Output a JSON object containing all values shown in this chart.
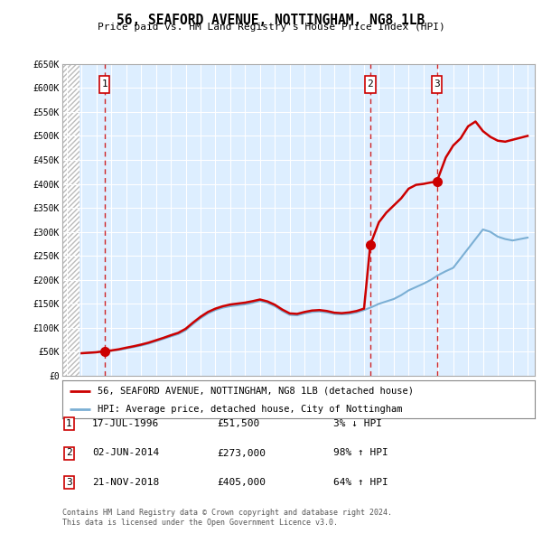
{
  "title": "56, SEAFORD AVENUE, NOTTINGHAM, NG8 1LB",
  "subtitle": "Price paid vs. HM Land Registry's House Price Index (HPI)",
  "ylabel_ticks": [
    "£0",
    "£50K",
    "£100K",
    "£150K",
    "£200K",
    "£250K",
    "£300K",
    "£350K",
    "£400K",
    "£450K",
    "£500K",
    "£550K",
    "£600K",
    "£650K"
  ],
  "ylim": [
    0,
    650000
  ],
  "ytick_vals": [
    0,
    50000,
    100000,
    150000,
    200000,
    250000,
    300000,
    350000,
    400000,
    450000,
    500000,
    550000,
    600000,
    650000
  ],
  "xlim_start": 1993.7,
  "xlim_end": 2025.5,
  "xtick_start": 1994,
  "xtick_end": 2025,
  "sale_dates": [
    1996.54,
    2014.42,
    2018.9
  ],
  "sale_prices": [
    51500,
    273000,
    405000
  ],
  "sale_labels": [
    "1",
    "2",
    "3"
  ],
  "sale_info": [
    {
      "label": "1",
      "date": "17-JUL-1996",
      "price": "£51,500",
      "hpi": "3% ↓ HPI"
    },
    {
      "label": "2",
      "date": "02-JUN-2014",
      "price": "£273,000",
      "hpi": "98% ↑ HPI"
    },
    {
      "label": "3",
      "date": "21-NOV-2018",
      "price": "£405,000",
      "hpi": "64% ↑ HPI"
    }
  ],
  "legend_property": "56, SEAFORD AVENUE, NOTTINGHAM, NG8 1LB (detached house)",
  "legend_hpi": "HPI: Average price, detached house, City of Nottingham",
  "footer1": "Contains HM Land Registry data © Crown copyright and database right 2024.",
  "footer2": "This data is licensed under the Open Government Licence v3.0.",
  "property_line_color": "#cc0000",
  "hpi_line_color": "#7bafd4",
  "dot_color": "#cc0000",
  "bg_plot_color": "#ddeeff",
  "grid_color": "#ffffff",
  "vline_color": "#cc0000",
  "box_color": "#cc0000",
  "hpi_years": [
    1995.0,
    1995.5,
    1996.0,
    1996.5,
    1997.0,
    1997.5,
    1998.0,
    1998.5,
    1999.0,
    1999.5,
    2000.0,
    2000.5,
    2001.0,
    2001.5,
    2002.0,
    2002.5,
    2003.0,
    2003.5,
    2004.0,
    2004.5,
    2005.0,
    2005.5,
    2006.0,
    2006.5,
    2007.0,
    2007.5,
    2008.0,
    2008.5,
    2009.0,
    2009.5,
    2010.0,
    2010.5,
    2011.0,
    2011.5,
    2012.0,
    2012.5,
    2013.0,
    2013.5,
    2014.0,
    2014.5,
    2015.0,
    2015.5,
    2016.0,
    2016.5,
    2017.0,
    2017.5,
    2018.0,
    2018.5,
    2019.0,
    2019.5,
    2020.0,
    2020.5,
    2021.0,
    2021.5,
    2022.0,
    2022.5,
    2023.0,
    2023.5,
    2024.0,
    2024.5,
    2025.0
  ],
  "hpi_values": [
    47000,
    48000,
    49000,
    50500,
    52000,
    54000,
    57000,
    60000,
    63000,
    67000,
    72000,
    77000,
    82000,
    87000,
    95000,
    108000,
    120000,
    130000,
    137000,
    142000,
    145000,
    147000,
    149000,
    152000,
    156000,
    152000,
    145000,
    135000,
    127000,
    126000,
    130000,
    133000,
    134000,
    132000,
    129000,
    128000,
    129000,
    132000,
    137000,
    143000,
    150000,
    155000,
    160000,
    168000,
    178000,
    185000,
    192000,
    200000,
    210000,
    218000,
    225000,
    245000,
    265000,
    285000,
    305000,
    300000,
    290000,
    285000,
    282000,
    285000,
    288000
  ],
  "property_years": [
    1995.0,
    1995.5,
    1996.0,
    1996.54,
    1997.0,
    1997.5,
    1998.0,
    1998.5,
    1999.0,
    1999.5,
    2000.0,
    2000.5,
    2001.0,
    2001.5,
    2002.0,
    2002.5,
    2003.0,
    2003.5,
    2004.0,
    2004.5,
    2005.0,
    2005.5,
    2006.0,
    2006.5,
    2007.0,
    2007.5,
    2008.0,
    2008.5,
    2009.0,
    2009.5,
    2010.0,
    2010.5,
    2011.0,
    2011.5,
    2012.0,
    2012.5,
    2013.0,
    2013.5,
    2014.0,
    2014.42,
    2015.0,
    2015.5,
    2016.0,
    2016.5,
    2017.0,
    2017.5,
    2018.0,
    2018.5,
    2018.9,
    2019.5,
    2020.0,
    2020.5,
    2021.0,
    2021.5,
    2022.0,
    2022.5,
    2023.0,
    2023.5,
    2024.0,
    2024.5,
    2025.0
  ],
  "property_values": [
    47000,
    48000,
    49000,
    51500,
    52800,
    55200,
    58500,
    61500,
    65000,
    69000,
    74000,
    79000,
    84500,
    89500,
    98000,
    111000,
    123000,
    133000,
    140000,
    145000,
    148500,
    150500,
    152500,
    155500,
    159000,
    155000,
    148000,
    138000,
    130000,
    129000,
    133000,
    136000,
    137000,
    135000,
    131500,
    130500,
    132000,
    135000,
    140000,
    273000,
    320000,
    340000,
    355000,
    370000,
    390000,
    398000,
    400000,
    403000,
    405000,
    455000,
    480000,
    495000,
    520000,
    530000,
    510000,
    498000,
    490000,
    488000,
    492000,
    496000,
    500000
  ]
}
